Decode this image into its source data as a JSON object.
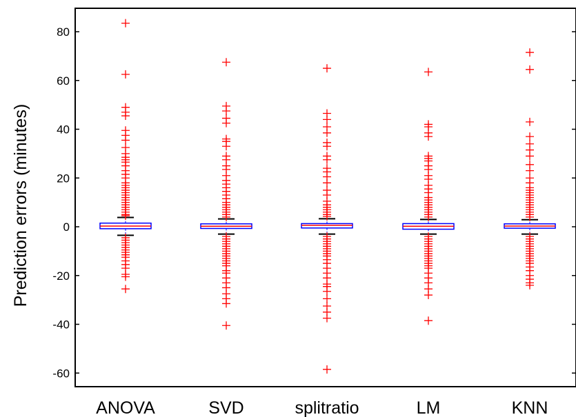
{
  "chart_data": {
    "type": "box",
    "ylabel": "Prediction errors (minutes)",
    "xlabel": "",
    "title": "",
    "ylim": [
      -65,
      90
    ],
    "yticks": [
      80,
      60,
      40,
      20,
      0,
      -20,
      -40,
      -60
    ],
    "categories": [
      "ANOVA",
      "SVD",
      "splitratio",
      "LM",
      "KNN"
    ],
    "grid": false,
    "colors": {
      "box": "#0000ff",
      "median": "#ff0000",
      "outlier": "#ff0000",
      "whisker": "#000000"
    },
    "boxes": [
      {
        "name": "ANOVA",
        "q1": -0.8,
        "median": 0.3,
        "q3": 1.5,
        "whisker_low": -3.5,
        "whisker_high": 3.8,
        "outliers": [
          83.5,
          62.5,
          49,
          47,
          45.5,
          39.5,
          37.5,
          35.5,
          32.5,
          30,
          28.5,
          27.5,
          26.5,
          25,
          23,
          21.5,
          20,
          18,
          17,
          16,
          15,
          14,
          13,
          12,
          11,
          10,
          9,
          8,
          7,
          6,
          5,
          4.5,
          -4.5,
          -5.5,
          -6.5,
          -7.5,
          -8.5,
          -9.5,
          -10.5,
          -11.5,
          -12.5,
          -14,
          -15.5,
          -17,
          -19.5,
          -20.5,
          -25.5
        ]
      },
      {
        "name": "SVD",
        "q1": -0.7,
        "median": 0.2,
        "q3": 1.2,
        "whisker_low": -3.0,
        "whisker_high": 3.2,
        "outliers": [
          67.5,
          49.5,
          47.5,
          44.5,
          42.5,
          36,
          35,
          33,
          29,
          27.5,
          25,
          23.5,
          21,
          19,
          17.5,
          16,
          14.5,
          13,
          11.5,
          10,
          9,
          8,
          7,
          6,
          5,
          4,
          -4,
          -5,
          -6,
          -7,
          -8,
          -9,
          -10,
          -11,
          -12,
          -13,
          -14,
          -15,
          -16,
          -18,
          -19,
          -21,
          -23,
          -25,
          -27.5,
          -29.5,
          -31.5,
          -40.5
        ]
      },
      {
        "name": "splitratio",
        "q1": -0.5,
        "median": 0.6,
        "q3": 1.3,
        "whisker_low": -3.0,
        "whisker_high": 3.3,
        "outliers": [
          65,
          46.5,
          44,
          41,
          38.5,
          34.5,
          33,
          29,
          27.5,
          24,
          22.5,
          20.5,
          18,
          15,
          13,
          10.5,
          9,
          8,
          7,
          6,
          5,
          4.2,
          -4,
          -5,
          -6,
          -7,
          -8,
          -9,
          -10,
          -11,
          -12,
          -13.5,
          -15,
          -17,
          -19,
          -21,
          -23.5,
          -24.5,
          -26.5,
          -29.5,
          -32.5,
          -35,
          -37.5,
          -58.5
        ]
      },
      {
        "name": "LM",
        "q1": -1.0,
        "median": 0.2,
        "q3": 1.3,
        "whisker_low": -3.0,
        "whisker_high": 3.0,
        "outliers": [
          63.5,
          42,
          41,
          38.5,
          37,
          29,
          28,
          27,
          25,
          23.5,
          21,
          19.5,
          17,
          15.5,
          14,
          12,
          11,
          10,
          9,
          8,
          7,
          6,
          5,
          4,
          -4,
          -5,
          -6,
          -7,
          -8,
          -9,
          -10,
          -11,
          -12,
          -13,
          -14,
          -15,
          -16,
          -17,
          -19,
          -21,
          -23,
          -25.5,
          -28,
          -38.5
        ]
      },
      {
        "name": "KNN",
        "q1": -0.6,
        "median": 0.3,
        "q3": 1.2,
        "whisker_low": -3.0,
        "whisker_high": 2.9,
        "outliers": [
          71.5,
          64.5,
          43,
          37,
          34,
          31.5,
          29,
          25.5,
          23,
          20,
          18,
          16,
          15,
          14,
          13,
          12,
          11,
          10,
          9,
          8,
          7,
          6,
          5,
          4,
          -4,
          -5,
          -6,
          -7,
          -8,
          -9,
          -10,
          -11,
          -12,
          -13,
          -14,
          -15,
          -16.5,
          -18,
          -20,
          -21.5,
          -23,
          -24
        ]
      }
    ]
  }
}
